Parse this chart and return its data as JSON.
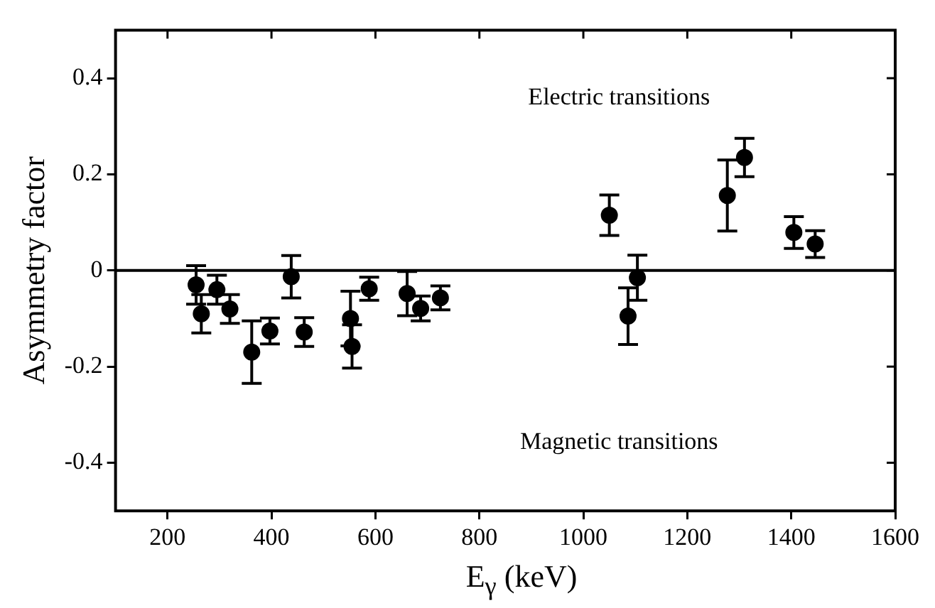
{
  "chart_data": {
    "type": "scatter",
    "xlabel": "E$_{γ}$ (keV)",
    "ylabel": "Asymmetry factor",
    "x": [
      255,
      265,
      295,
      320,
      362,
      397,
      438,
      463,
      552,
      555,
      588,
      661,
      687,
      725,
      1050,
      1086,
      1104,
      1277,
      1310,
      1405,
      1446
    ],
    "series": [
      {
        "color": "#000000",
        "values": [
          -0.03,
          -0.09,
          -0.04,
          -0.08,
          -0.17,
          -0.126,
          -0.013,
          -0.128,
          -0.1,
          -0.158,
          -0.038,
          -0.048,
          -0.079,
          -0.057,
          0.115,
          -0.095,
          -0.015,
          0.156,
          0.235,
          0.079,
          0.055
        ],
        "errors": [
          0.04,
          0.04,
          0.03,
          0.03,
          0.065,
          0.027,
          0.044,
          0.03,
          0.057,
          0.045,
          0.024,
          0.046,
          0.026,
          0.025,
          0.042,
          0.059,
          0.047,
          0.074,
          0.04,
          0.033,
          0.028
        ]
      }
    ],
    "xlim": [
      100,
      1600
    ],
    "xticks": [
      200,
      400,
      600,
      800,
      1000,
      1200,
      1400,
      1600
    ],
    "ylim": [
      -0.5,
      0.5
    ],
    "yticks": [
      -0.4,
      -0.2,
      0,
      0.2,
      0.4
    ],
    "ref_lines": [
      {
        "axis": "y",
        "value": 0,
        "color": "#000000"
      }
    ],
    "annotations": [
      "Electric transitions",
      "Magnetic transitions"
    ],
    "marker": "circle",
    "grid": false,
    "legend": false
  }
}
